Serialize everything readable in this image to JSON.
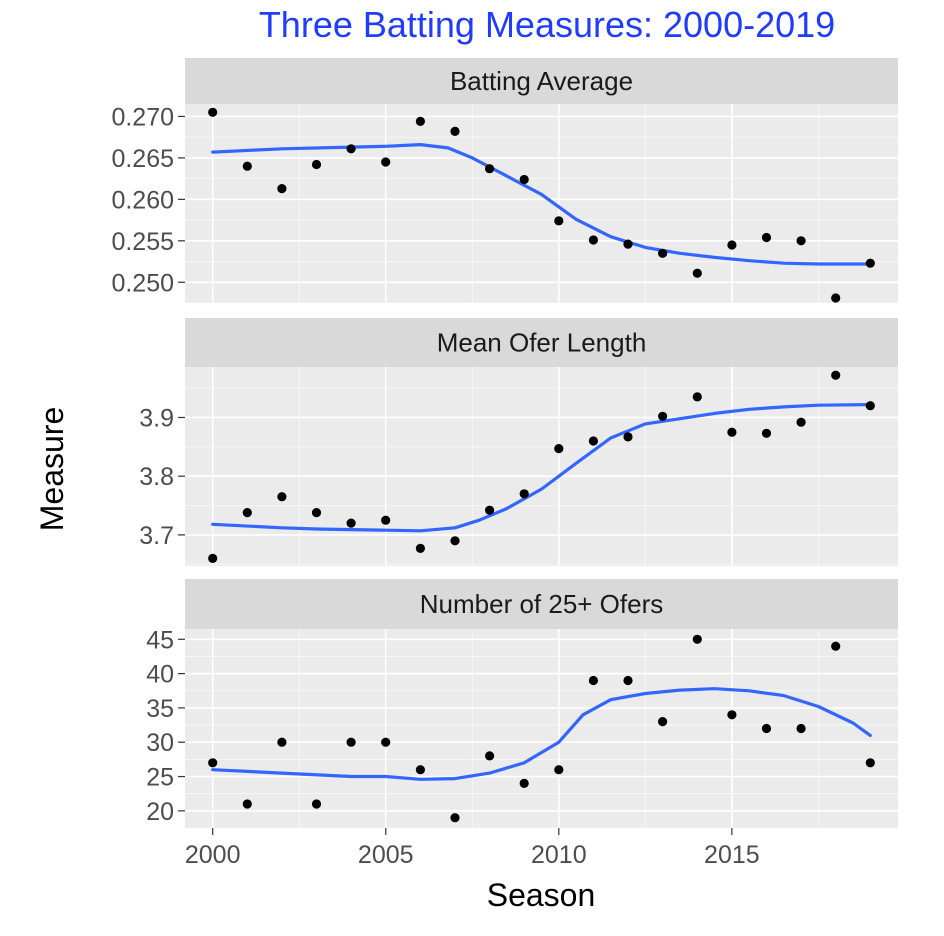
{
  "chart_data": {
    "type": "scatter",
    "title": "Three Batting Measures: 2000-2019",
    "xlabel": "Season",
    "ylabel": "Measure",
    "x_ticks": [
      "2000",
      "2005",
      "2010",
      "2015"
    ],
    "x_range": [
      1999.2,
      2019.8
    ],
    "grid": true,
    "colors": {
      "title": "#1f3cff",
      "smooth": "#3366ff",
      "point": "#000000",
      "panel_bg": "#ebebeb",
      "strip_bg": "#d9d9d9",
      "gridline": "#ffffff"
    },
    "panels": [
      {
        "name": "Batting Average",
        "ylim": [
          0.2475,
          0.2715
        ],
        "y_ticks": [
          "0.270",
          "0.265",
          "0.260",
          "0.255",
          "0.250"
        ],
        "points": [
          [
            2000,
            0.2705
          ],
          [
            2001,
            0.264
          ],
          [
            2002,
            0.2613
          ],
          [
            2003,
            0.2642
          ],
          [
            2004,
            0.2661
          ],
          [
            2005,
            0.2645
          ],
          [
            2006,
            0.2694
          ],
          [
            2007,
            0.2682
          ],
          [
            2008,
            0.2637
          ],
          [
            2009,
            0.2624
          ],
          [
            2010,
            0.2574
          ],
          [
            2011,
            0.2551
          ],
          [
            2012,
            0.2546
          ],
          [
            2013,
            0.2535
          ],
          [
            2014,
            0.2511
          ],
          [
            2015,
            0.2545
          ],
          [
            2016,
            0.2554
          ],
          [
            2017,
            0.255
          ],
          [
            2018,
            0.2481
          ],
          [
            2019,
            0.2523
          ]
        ],
        "smooth": [
          [
            2000,
            0.2657
          ],
          [
            2002,
            0.2661
          ],
          [
            2004,
            0.2663
          ],
          [
            2005,
            0.2664
          ],
          [
            2006,
            0.2666
          ],
          [
            2006.8,
            0.2662
          ],
          [
            2007.5,
            0.265
          ],
          [
            2008.5,
            0.2628
          ],
          [
            2009.5,
            0.2606
          ],
          [
            2010.5,
            0.2576
          ],
          [
            2011.5,
            0.2555
          ],
          [
            2012.5,
            0.2542
          ],
          [
            2013.5,
            0.2535
          ],
          [
            2014.5,
            0.253
          ],
          [
            2015.5,
            0.2526
          ],
          [
            2016.5,
            0.2523
          ],
          [
            2017.5,
            0.2522
          ],
          [
            2019,
            0.2522
          ]
        ]
      },
      {
        "name": "Mean Ofer Length",
        "ylim": [
          3.647,
          3.986
        ],
        "y_ticks": [
          "3.9",
          "3.8",
          "3.7"
        ],
        "points": [
          [
            2000,
            3.66
          ],
          [
            2001,
            3.738
          ],
          [
            2002,
            3.765
          ],
          [
            2003,
            3.738
          ],
          [
            2004,
            3.72
          ],
          [
            2005,
            3.725
          ],
          [
            2006,
            3.677
          ],
          [
            2007,
            3.69
          ],
          [
            2008,
            3.742
          ],
          [
            2009,
            3.77
          ],
          [
            2010,
            3.847
          ],
          [
            2011,
            3.86
          ],
          [
            2012,
            3.867
          ],
          [
            2013,
            3.902
          ],
          [
            2014,
            3.935
          ],
          [
            2015,
            3.875
          ],
          [
            2016,
            3.873
          ],
          [
            2017,
            3.892
          ],
          [
            2018,
            3.972
          ],
          [
            2019,
            3.92
          ]
        ],
        "smooth": [
          [
            2000,
            3.718
          ],
          [
            2002,
            3.712
          ],
          [
            2003,
            3.71
          ],
          [
            2004,
            3.709
          ],
          [
            2005,
            3.708
          ],
          [
            2006,
            3.707
          ],
          [
            2007,
            3.712
          ],
          [
            2007.7,
            3.725
          ],
          [
            2008.5,
            3.745
          ],
          [
            2009.5,
            3.778
          ],
          [
            2010.5,
            3.822
          ],
          [
            2011.5,
            3.865
          ],
          [
            2012.5,
            3.889
          ],
          [
            2013.5,
            3.898
          ],
          [
            2014.5,
            3.907
          ],
          [
            2015.5,
            3.914
          ],
          [
            2016.5,
            3.918
          ],
          [
            2017.5,
            3.921
          ],
          [
            2019,
            3.922
          ]
        ]
      },
      {
        "name": "Number of 25+ Ofers",
        "ylim": [
          17.5,
          46.5
        ],
        "y_ticks": [
          "45",
          "40",
          "35",
          "30",
          "25",
          "20"
        ],
        "points": [
          [
            2000,
            27
          ],
          [
            2001,
            21
          ],
          [
            2002,
            30
          ],
          [
            2003,
            21
          ],
          [
            2004,
            30
          ],
          [
            2005,
            30
          ],
          [
            2006,
            26
          ],
          [
            2007,
            19
          ],
          [
            2008,
            28
          ],
          [
            2009,
            24
          ],
          [
            2010,
            26
          ],
          [
            2011,
            39
          ],
          [
            2012,
            39
          ],
          [
            2013,
            33
          ],
          [
            2014,
            45
          ],
          [
            2015,
            34
          ],
          [
            2016,
            32
          ],
          [
            2017,
            32
          ],
          [
            2018,
            44
          ],
          [
            2019,
            27
          ]
        ],
        "smooth": [
          [
            2000,
            26.0
          ],
          [
            2002,
            25.5
          ],
          [
            2004,
            25.0
          ],
          [
            2005,
            25.0
          ],
          [
            2006,
            24.6
          ],
          [
            2007,
            24.7
          ],
          [
            2008,
            25.5
          ],
          [
            2009,
            27.0
          ],
          [
            2010,
            30.0
          ],
          [
            2010.7,
            34.0
          ],
          [
            2011.5,
            36.2
          ],
          [
            2012.5,
            37.1
          ],
          [
            2013.5,
            37.6
          ],
          [
            2014.5,
            37.8
          ],
          [
            2015.5,
            37.5
          ],
          [
            2016.5,
            36.8
          ],
          [
            2017.5,
            35.2
          ],
          [
            2018.5,
            32.8
          ],
          [
            2019,
            31.0
          ]
        ]
      }
    ]
  }
}
